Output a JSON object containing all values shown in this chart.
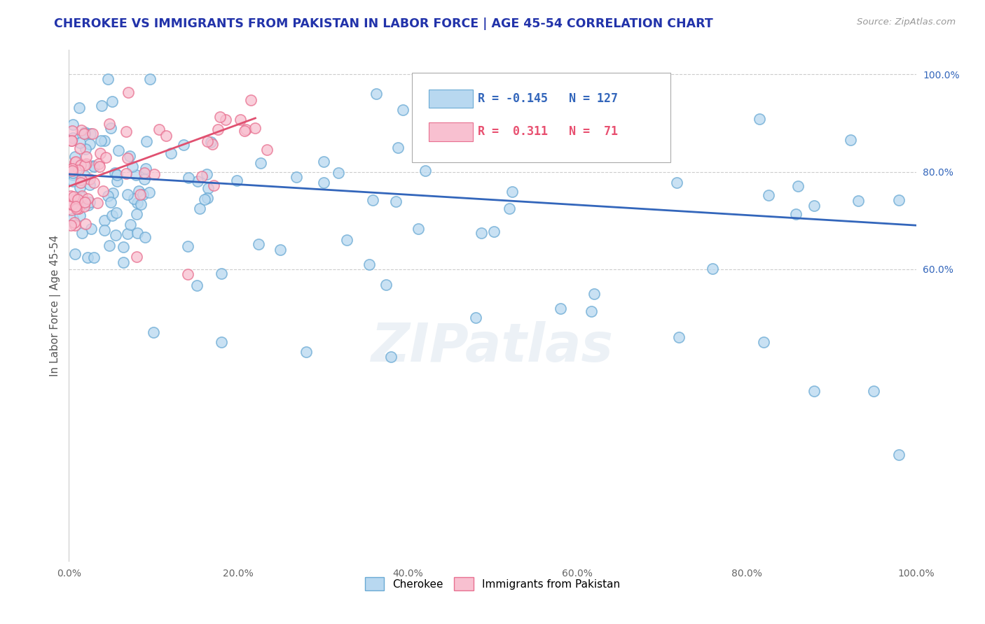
{
  "title": "CHEROKEE VS IMMIGRANTS FROM PAKISTAN IN LABOR FORCE | AGE 45-54 CORRELATION CHART",
  "source": "Source: ZipAtlas.com",
  "ylabel": "In Labor Force | Age 45-54",
  "cherokee_R": -0.145,
  "cherokee_N": 127,
  "pakistan_R": 0.311,
  "pakistan_N": 71,
  "cherokee_color": "#b8d8f0",
  "cherokee_edge_color": "#6aaad4",
  "pakistan_color": "#f8c0d0",
  "pakistan_edge_color": "#e87090",
  "trend_cherokee_color": "#3366bb",
  "trend_pakistan_color": "#e05070",
  "background_color": "#ffffff",
  "grid_color": "#cccccc",
  "title_color": "#2233aa",
  "watermark": "ZIPatlas",
  "xlim": [
    0.0,
    1.0
  ],
  "ylim": [
    0.0,
    1.05
  ],
  "xticks": [
    0.0,
    0.2,
    0.4,
    0.6,
    0.8,
    1.0
  ],
  "xticklabels": [
    "0.0%",
    "20.0%",
    "40.0%",
    "60.0%",
    "80.0%",
    "100.0%"
  ],
  "right_yticks": [
    0.6,
    0.8,
    1.0
  ],
  "right_yticklabels": [
    "60.0%",
    "80.0%",
    "100.0%"
  ],
  "legend_cherokee_label": "Cherokee",
  "legend_pakistan_label": "Immigrants from Pakistan",
  "marker_size": 120,
  "trend_cherokee_start_y": 0.795,
  "trend_cherokee_end_y": 0.69,
  "trend_pakistan_start_x": 0.0,
  "trend_pakistan_start_y": 0.77,
  "trend_pakistan_end_x": 0.22,
  "trend_pakistan_end_y": 0.91
}
